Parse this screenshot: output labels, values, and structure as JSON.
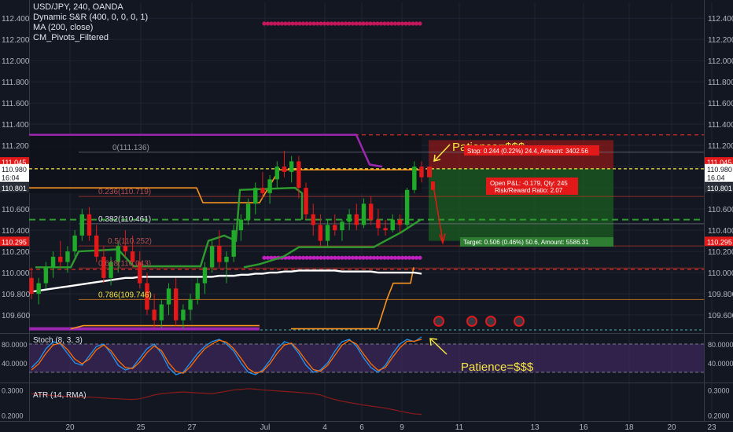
{
  "legend": {
    "symbol": "USD/JPY, 240, OANDA",
    "indicators": [
      "Dynamic S&R (400, 0, 0, 0, 1)",
      "MA (200, close)",
      "CM_Pivots_Filtered"
    ]
  },
  "annotations": {
    "patience_top": "Patience=$$$",
    "patience_bottom": "Patience=$$$",
    "stop_label": "Stop: 0.244 (0.22%) 24.4, Amount: 3402.56",
    "open_pl": "Open P&L: -0.179, Qty: 245",
    "rr_ratio": "Risk/Reward Ratio: 2.07",
    "target_label": "Target: 0.506 (0.46%) 50.6, Amount: 5586.31",
    "fib_0": "0(111.136)",
    "fib_236": "0.236(110.719)",
    "fib_382": "0.382(110.461)",
    "fib_5": "0.5(110.252)",
    "fib_618": "0.618(110.043)",
    "fib_786": "0.786(109.746)"
  },
  "price_tags": {
    "left": [
      "111.045",
      "110.980",
      "16:04",
      "110.801",
      "110.295"
    ],
    "right": [
      "111.045",
      "110.980",
      "16.04",
      "110.801",
      "110.295"
    ]
  },
  "colors": {
    "background": "#131722",
    "bull": "#1faa29",
    "bear": "#e31919",
    "stop_zone": "#8b1a1a",
    "target_zone": "#1b5e20",
    "pivot": "#9c27b0",
    "ma": "#ffffff",
    "sr_orange": "#f7931e",
    "sr_green": "#2e9b2e",
    "fib_line": "#c0392b",
    "annotation": "#f5e642"
  },
  "chart_data": [
    {
      "type": "candlestick",
      "title": "USD/JPY, 240, OANDA",
      "x_tick_labels": [
        "20",
        "25",
        "27",
        "Jul",
        "4",
        "6",
        "9",
        "11",
        "13",
        "16",
        "18",
        "20",
        "23"
      ],
      "y_tick_labels": [
        "112.400",
        "112.200",
        "112.000",
        "111.800",
        "111.600",
        "111.400",
        "111.200",
        "111.000",
        "110.800",
        "110.600",
        "110.400",
        "110.200",
        "110.000",
        "109.800",
        "109.600"
      ],
      "ylim": [
        109.43,
        112.55
      ],
      "ohlc": [
        [
          109.95,
          110.05,
          109.75,
          109.8
        ],
        [
          109.8,
          109.95,
          109.7,
          109.9
        ],
        [
          109.9,
          110.1,
          109.85,
          110.05
        ],
        [
          110.05,
          110.2,
          109.95,
          110.15
        ],
        [
          110.15,
          110.3,
          110.05,
          110.1
        ],
        [
          110.1,
          110.25,
          110.0,
          110.2
        ],
        [
          110.2,
          110.4,
          110.15,
          110.35
        ],
        [
          110.35,
          110.6,
          110.3,
          110.55
        ],
        [
          110.55,
          110.62,
          110.3,
          110.35
        ],
        [
          110.35,
          110.45,
          110.1,
          110.15
        ],
        [
          110.15,
          110.25,
          109.9,
          109.95
        ],
        [
          109.95,
          110.15,
          109.88,
          110.1
        ],
        [
          110.1,
          110.3,
          110.0,
          110.25
        ],
        [
          110.25,
          110.4,
          110.15,
          110.2
        ],
        [
          110.2,
          110.35,
          110.05,
          110.1
        ],
        [
          110.1,
          110.2,
          109.85,
          109.9
        ],
        [
          109.9,
          110.0,
          109.6,
          109.65
        ],
        [
          109.65,
          109.8,
          109.48,
          109.55
        ],
        [
          109.55,
          109.75,
          109.48,
          109.7
        ],
        [
          109.7,
          109.9,
          109.6,
          109.85
        ],
        [
          109.85,
          109.95,
          109.5,
          109.55
        ],
        [
          109.55,
          109.7,
          109.47,
          109.65
        ],
        [
          109.65,
          109.8,
          109.55,
          109.75
        ],
        [
          109.75,
          109.95,
          109.7,
          109.9
        ],
        [
          109.9,
          110.1,
          109.8,
          110.05
        ],
        [
          110.05,
          110.3,
          110.0,
          110.25
        ],
        [
          110.25,
          110.4,
          110.05,
          110.1
        ],
        [
          110.1,
          110.2,
          109.9,
          110.15
        ],
        [
          110.15,
          110.45,
          110.1,
          110.4
        ],
        [
          110.4,
          110.55,
          110.3,
          110.5
        ],
        [
          110.5,
          110.7,
          110.45,
          110.65
        ],
        [
          110.65,
          110.85,
          110.55,
          110.8
        ],
        [
          110.8,
          110.95,
          110.7,
          110.75
        ],
        [
          110.75,
          110.92,
          110.65,
          110.88
        ],
        [
          110.88,
          111.05,
          110.8,
          111.0
        ],
        [
          111.0,
          111.15,
          110.9,
          110.95
        ],
        [
          110.95,
          111.1,
          110.85,
          111.05
        ],
        [
          111.05,
          111.1,
          110.7,
          110.8
        ],
        [
          110.8,
          110.85,
          110.5,
          110.55
        ],
        [
          110.55,
          110.65,
          110.35,
          110.45
        ],
        [
          110.45,
          110.55,
          110.25,
          110.3
        ],
        [
          110.3,
          110.5,
          110.25,
          110.45
        ],
        [
          110.45,
          110.55,
          110.35,
          110.4
        ],
        [
          110.4,
          110.5,
          110.3,
          110.48
        ],
        [
          110.48,
          110.6,
          110.4,
          110.55
        ],
        [
          110.55,
          110.65,
          110.4,
          110.45
        ],
        [
          110.45,
          110.7,
          110.42,
          110.65
        ],
        [
          110.65,
          110.72,
          110.45,
          110.5
        ],
        [
          110.5,
          110.6,
          110.35,
          110.42
        ],
        [
          110.42,
          110.5,
          110.35,
          110.4
        ],
        [
          110.4,
          110.55,
          110.38,
          110.5
        ],
        [
          110.5,
          110.55,
          110.38,
          110.45
        ],
        [
          110.45,
          110.8,
          110.42,
          110.78
        ],
        [
          110.78,
          111.05,
          110.75,
          111.0
        ],
        [
          111.0,
          111.05,
          110.85,
          110.9
        ]
      ],
      "ma_200": [
        109.82,
        109.83,
        109.84,
        109.85,
        109.86,
        109.87,
        109.88,
        109.89,
        109.9,
        109.91,
        109.92,
        109.93,
        109.94,
        109.95,
        109.95,
        109.96,
        109.96,
        109.96,
        109.96,
        109.96,
        109.96,
        109.96,
        109.96,
        109.96,
        109.96,
        109.96,
        109.97,
        109.97,
        109.97,
        109.98,
        109.98,
        109.99,
        109.99,
        110.0,
        110.0,
        110.01,
        110.01,
        110.02,
        110.02,
        110.02,
        110.02,
        110.02,
        110.02,
        110.01,
        110.01,
        110.01,
        110.01,
        110.01,
        110.0,
        110.0,
        110.0,
        110.0,
        110.0,
        110.0,
        109.99
      ]
    },
    {
      "type": "line",
      "title": "Stoch (8, 3, 3)",
      "y_tick_labels": [
        "80.0000",
        "40.0000"
      ],
      "ylim": [
        0,
        100
      ],
      "series": [
        {
          "values": [
            30,
            45,
            70,
            85,
            80,
            60,
            40,
            35,
            55,
            75,
            80,
            60,
            35,
            25,
            30,
            50,
            70,
            80,
            60,
            30,
            15,
            20,
            40,
            60,
            75,
            85,
            90,
            80,
            65,
            40,
            20,
            15,
            25,
            45,
            70,
            85,
            80,
            60,
            35,
            20,
            25,
            40,
            65,
            85,
            90,
            75,
            50,
            30,
            20,
            35,
            60,
            80,
            90,
            85,
            95
          ]
        },
        {
          "values": [
            25,
            38,
            60,
            78,
            82,
            68,
            48,
            38,
            48,
            68,
            78,
            66,
            45,
            30,
            28,
            42,
            62,
            76,
            66,
            40,
            22,
            18,
            32,
            52,
            70,
            80,
            88,
            84,
            70,
            50,
            28,
            18,
            22,
            38,
            60,
            78,
            82,
            66,
            45,
            26,
            22,
            35,
            56,
            78,
            88,
            80,
            58,
            38,
            24,
            30,
            52,
            72,
            86,
            86,
            90
          ]
        }
      ]
    },
    {
      "type": "line",
      "title": "ATR (14, RMA)",
      "y_tick_labels": [
        "0.3000",
        "0.2000"
      ],
      "ylim": [
        0.18,
        0.32
      ],
      "series": [
        {
          "values": [
            0.285,
            0.283,
            0.28,
            0.278,
            0.276,
            0.274,
            0.272,
            0.27,
            0.272,
            0.27,
            0.268,
            0.266,
            0.265,
            0.263,
            0.262,
            0.265,
            0.272,
            0.28,
            0.285,
            0.288,
            0.29,
            0.292,
            0.29,
            0.288,
            0.287,
            0.285,
            0.29,
            0.295,
            0.3,
            0.302,
            0.305,
            0.303,
            0.3,
            0.298,
            0.296,
            0.294,
            0.292,
            0.29,
            0.288,
            0.285,
            0.28,
            0.27,
            0.262,
            0.255,
            0.25,
            0.245,
            0.24,
            0.236,
            0.232,
            0.228,
            0.222,
            0.216,
            0.21,
            0.205,
            0.203
          ]
        }
      ]
    }
  ]
}
